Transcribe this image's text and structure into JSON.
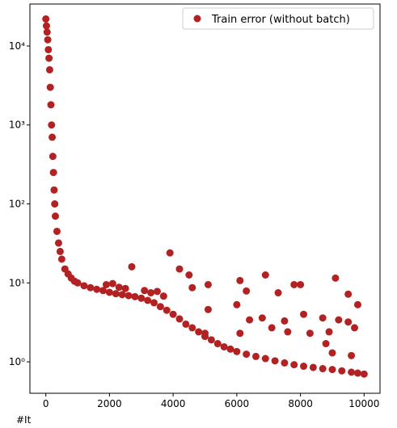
{
  "chart_data": {
    "type": "scatter",
    "x_label": "#It",
    "log_y": true,
    "legend_position": "upper right",
    "xlim": [
      -500,
      10500
    ],
    "xticks": [
      0,
      2000,
      4000,
      6000,
      8000,
      10000
    ],
    "ylim": [
      0.4,
      34000
    ],
    "yticks": [
      {
        "value": 1,
        "label": "10⁰"
      },
      {
        "value": 10,
        "label": "10¹"
      },
      {
        "value": 100,
        "label": "10²"
      },
      {
        "value": 1000,
        "label": "10³"
      },
      {
        "value": 10000,
        "label": "10⁴"
      }
    ],
    "x": [
      0,
      20,
      40,
      60,
      80,
      100,
      120,
      140,
      160,
      180,
      200,
      220,
      240,
      260,
      280,
      300,
      350,
      400,
      450,
      500,
      600,
      700,
      800,
      900,
      1000,
      1200,
      1400,
      1600,
      1800,
      2000,
      2200,
      2400,
      2600,
      2800,
      3000,
      3200,
      3400,
      3600,
      3800,
      4000,
      4200,
      4400,
      4600,
      4800,
      5000,
      5200,
      5400,
      5600,
      5800,
      6000,
      6300,
      6600,
      6900,
      7200,
      7500,
      7800,
      8100,
      8400,
      8700,
      9000,
      9300,
      9600,
      9800,
      10000,
      1900,
      2100,
      2300,
      2500,
      3100,
      3300,
      3500,
      3700,
      2700,
      3900,
      4200,
      4500,
      4600,
      5100,
      6100,
      6300,
      6900,
      7300,
      7800,
      8000,
      9100,
      9500,
      9800,
      5100,
      6000,
      6400,
      6800,
      7500,
      8100,
      8700,
      9200,
      9700,
      5000,
      6100,
      7100,
      7600,
      8300,
      8900,
      9500,
      8800,
      9600,
      9000
    ],
    "series": [
      {
        "name": "Train error (without batch)",
        "color": "#b22222",
        "values": [
          22000,
          18000,
          15000,
          12000,
          9000,
          7000,
          5000,
          3000,
          1800,
          1000,
          700,
          400,
          250,
          150,
          100,
          70,
          45,
          32,
          25,
          20,
          15,
          13,
          11.5,
          10.5,
          10,
          9.2,
          8.7,
          8.3,
          8,
          7.6,
          7.3,
          7.1,
          6.9,
          6.7,
          6.4,
          6,
          5.6,
          5,
          4.5,
          4,
          3.5,
          3,
          2.7,
          2.4,
          2.1,
          1.9,
          1.7,
          1.55,
          1.45,
          1.35,
          1.25,
          1.17,
          1.1,
          1.03,
          0.97,
          0.92,
          0.88,
          0.85,
          0.82,
          0.8,
          0.77,
          0.74,
          0.72,
          0.7,
          9.5,
          9.8,
          8.8,
          8.5,
          8,
          7.5,
          7.8,
          6.8,
          16,
          24,
          15,
          12.6,
          8.7,
          9.5,
          10.7,
          7.9,
          12.6,
          7.5,
          9.5,
          9.5,
          11.5,
          7.2,
          5.3,
          4.6,
          5.3,
          3.4,
          3.6,
          3.3,
          4,
          3.6,
          3.4,
          2.7,
          2.3,
          2.3,
          2.7,
          2.4,
          2.3,
          2.4,
          3.2,
          1.7,
          1.2,
          1.3
        ]
      }
    ]
  }
}
